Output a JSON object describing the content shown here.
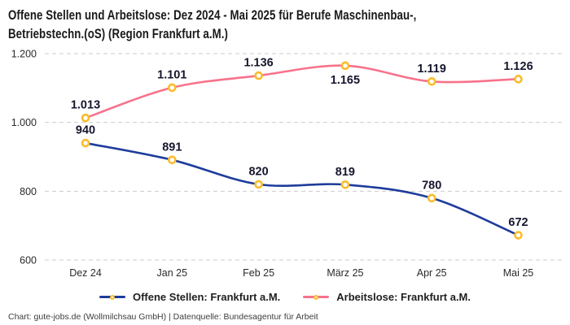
{
  "title": {
    "line1": "Offene Stellen und Arbeitslose: Dez 2024 - Mai 2025 für Berufe Maschinenbau-,",
    "line2": "Betriebstechn.(oS) (Region Frankfurt a.M.)"
  },
  "footer": "Chart: gute-jobs.de (Wollmilchsau GmbH) | Datenquelle: Bundesagentur für Arbeit",
  "chart_data": {
    "type": "line",
    "title": "Offene Stellen und Arbeitslose: Dez 2024 - Mai 2025 für Berufe Maschinenbau-, Betriebstechn.(oS) (Region Frankfurt a.M.)",
    "categories": [
      "Dez 24",
      "Jan 25",
      "Feb 25",
      "März 25",
      "Apr 25",
      "Mai 25"
    ],
    "series": [
      {
        "name": "Offene Stellen: Frankfurt a.M.",
        "values": [
          940,
          891,
          820,
          819,
          780,
          672
        ],
        "labels": [
          "940",
          "891",
          "820",
          "819",
          "780",
          "672"
        ],
        "color": "#1E3C9B"
      },
      {
        "name": "Arbeitslose: Frankfurt a.M.",
        "values": [
          1013,
          1101,
          1136,
          1165,
          1119,
          1126
        ],
        "labels": [
          "1.013",
          "1.101",
          "1.136",
          "1.165",
          "1.119",
          "1.126"
        ],
        "color": "#F8728A"
      }
    ],
    "y_axis": {
      "ticks": [
        600,
        800,
        1000,
        1200
      ],
      "tick_labels": [
        "600",
        "800",
        "1.000",
        "1.200"
      ],
      "min": 600,
      "max": 1200
    },
    "xlabel": "",
    "ylabel": "",
    "grid": "horizontal-dashed",
    "smooth": true,
    "legend_position": "bottom",
    "marker": {
      "fill": "#ffffff",
      "stroke": "#FBBC2B"
    },
    "colors": {
      "grid_line": "#CBCBCB",
      "axis_text": "#2a2a2a",
      "data_label": "#16162E"
    }
  }
}
